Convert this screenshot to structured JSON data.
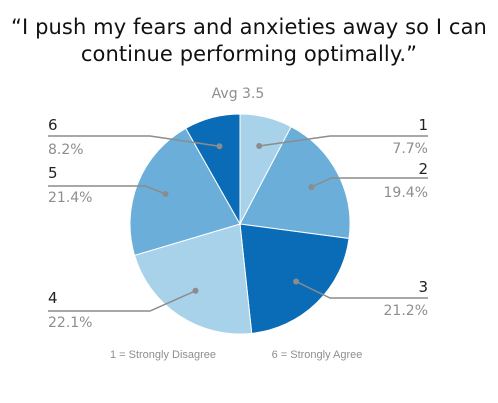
{
  "chart_data": {
    "type": "pie",
    "title_line1": "“I push my fears and anxieties away so I can",
    "title_line2": "continue performing optimally.”",
    "subtitle": "Avg 3.5",
    "categories": [
      "1",
      "2",
      "3",
      "4",
      "5",
      "6"
    ],
    "values": [
      7.7,
      19.4,
      21.2,
      22.1,
      21.4,
      8.2
    ],
    "value_labels": [
      "7.7%",
      "19.4%",
      "21.2%",
      "22.1%",
      "21.4%",
      "8.2%"
    ],
    "colors": [
      "#a8d1ea",
      "#6aaed9",
      "#0a6cb7",
      "#a8d1ea",
      "#6aaed9",
      "#0a6cb7"
    ],
    "scale_low": "1 = Strongly Disagree",
    "scale_high": "6 = Strongly Agree"
  }
}
